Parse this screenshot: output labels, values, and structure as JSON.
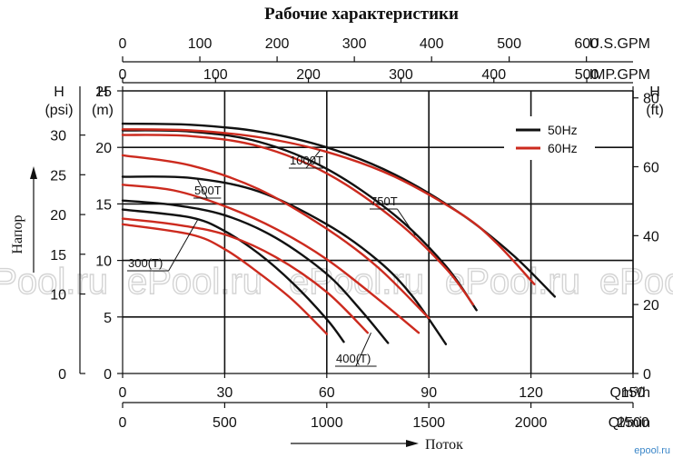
{
  "chart_data": {
    "type": "line",
    "title": "Рабочие характеристики",
    "y_axis_label": "Напор",
    "x_axis_label": "Поток",
    "axes": {
      "left_m": {
        "unit_top": "H",
        "unit": "(m)",
        "min": 0,
        "max": 25,
        "ticks": [
          "0",
          "5",
          "10",
          "15",
          "20",
          "25"
        ]
      },
      "left_psi": {
        "unit_top": "H",
        "unit": "(psi)",
        "ticks": [
          {
            "label": "0",
            "m": 0
          },
          {
            "label": "10",
            "m": 7.03
          },
          {
            "label": "15",
            "m": 10.55
          },
          {
            "label": "20",
            "m": 14.06
          },
          {
            "label": "25",
            "m": 17.58
          },
          {
            "label": "30",
            "m": 21.09
          }
        ]
      },
      "right_ft": {
        "unit_top": "H",
        "unit": "(ft)",
        "ticks": [
          {
            "label": "0",
            "m": 0
          },
          {
            "label": "20",
            "m": 6.1
          },
          {
            "label": "40",
            "m": 12.19
          },
          {
            "label": "60",
            "m": 18.29
          },
          {
            "label": "80",
            "m": 24.38
          }
        ]
      },
      "x_m3h": {
        "unit": "Qm³/h",
        "min": 0,
        "max": 150,
        "ticks": [
          "0",
          "30",
          "60",
          "90",
          "120",
          "150"
        ]
      },
      "x_lmin": {
        "unit": "Ql/min",
        "ticks": [
          {
            "label": "0",
            "m3h": 0
          },
          {
            "label": "500",
            "m3h": 30
          },
          {
            "label": "1000",
            "m3h": 60
          },
          {
            "label": "1500",
            "m3h": 90
          },
          {
            "label": "2000",
            "m3h": 120
          },
          {
            "label": "2500",
            "m3h": 150
          }
        ]
      },
      "x_usgpm": {
        "unit": "U.S.GPM",
        "ticks": [
          {
            "label": "0",
            "m3h": 0
          },
          {
            "label": "100",
            "m3h": 22.7
          },
          {
            "label": "200",
            "m3h": 45.4
          },
          {
            "label": "300",
            "m3h": 68.1
          },
          {
            "label": "400",
            "m3h": 90.8
          },
          {
            "label": "500",
            "m3h": 113.6
          },
          {
            "label": "600",
            "m3h": 136.3
          }
        ]
      },
      "x_impgpm": {
        "unit": "IMP.GPM",
        "ticks": [
          {
            "label": "0",
            "m3h": 0
          },
          {
            "label": "100",
            "m3h": 27.3
          },
          {
            "label": "200",
            "m3h": 54.6
          },
          {
            "label": "300",
            "m3h": 81.8
          },
          {
            "label": "400",
            "m3h": 109.1
          },
          {
            "label": "500",
            "m3h": 136.4
          }
        ]
      }
    },
    "grid": true,
    "legend": {
      "position": "top-right",
      "items": [
        {
          "label": "50Hz",
          "color": "#111111"
        },
        {
          "label": "60Hz",
          "color": "#cc2a1e"
        }
      ]
    },
    "series": [
      {
        "model": "300(T)",
        "freq": "50Hz",
        "color": "#111111",
        "x": [
          0,
          20,
          30,
          40,
          50,
          60,
          65
        ],
        "y": [
          14.5,
          13.8,
          12.6,
          10.6,
          8.0,
          4.8,
          2.8
        ]
      },
      {
        "model": "300(T)",
        "freq": "60Hz",
        "color": "#cc2a1e",
        "x": [
          0,
          20,
          30,
          40,
          50,
          60
        ],
        "y": [
          13.2,
          12.3,
          11.0,
          8.9,
          6.5,
          3.5
        ]
      },
      {
        "model": "400(T)",
        "freq": "50Hz",
        "color": "#111111",
        "x": [
          0,
          15,
          30,
          45,
          60,
          70,
          78
        ],
        "y": [
          15.3,
          14.9,
          14.0,
          12.0,
          8.8,
          5.6,
          2.7
        ]
      },
      {
        "model": "400(T)",
        "freq": "60Hz",
        "color": "#cc2a1e",
        "x": [
          0,
          15,
          30,
          45,
          60,
          72
        ],
        "y": [
          13.7,
          13.2,
          12.3,
          10.3,
          7.2,
          3.6
        ]
      },
      {
        "model": "500T",
        "freq": "50Hz",
        "color": "#111111",
        "x": [
          0,
          20,
          40,
          60,
          75,
          85,
          95
        ],
        "y": [
          17.4,
          17.3,
          16.1,
          13.2,
          10.0,
          6.9,
          2.6
        ]
      },
      {
        "model": "500T",
        "freq": "60Hz",
        "color": "#cc2a1e",
        "x": [
          0,
          15,
          30,
          45,
          60,
          75,
          87
        ],
        "y": [
          16.7,
          16.2,
          14.8,
          12.8,
          10.1,
          6.6,
          3.6
        ]
      },
      {
        "model": "500T",
        "freq": "60Hz",
        "color": "#cc2a1e",
        "x": [
          0,
          20,
          40,
          60,
          75,
          90
        ],
        "y": [
          19.3,
          18.4,
          16.3,
          12.8,
          9.4,
          4.9
        ]
      },
      {
        "model": "750T",
        "freq": "50Hz",
        "color": "#111111",
        "x": [
          0,
          20,
          40,
          60,
          80,
          95,
          104
        ],
        "y": [
          21.5,
          21.4,
          20.5,
          18.1,
          14.0,
          9.5,
          5.6
        ]
      },
      {
        "model": "750T",
        "freq": "60Hz",
        "color": "#cc2a1e",
        "x": [
          0,
          20,
          40,
          60,
          80,
          95,
          103
        ],
        "y": [
          21.1,
          21.0,
          20.1,
          17.7,
          13.6,
          9.3,
          6.1
        ]
      },
      {
        "model": "1000T",
        "freq": "50Hz",
        "color": "#111111",
        "x": [
          0,
          20,
          40,
          60,
          80,
          100,
          115,
          127
        ],
        "y": [
          22.1,
          22.0,
          21.4,
          20.0,
          17.6,
          14.0,
          10.4,
          6.8
        ]
      },
      {
        "model": "1000T",
        "freq": "60Hz",
        "color": "#cc2a1e",
        "x": [
          0,
          20,
          40,
          60,
          80,
          100,
          110,
          121
        ],
        "y": [
          21.6,
          21.5,
          20.9,
          19.6,
          17.4,
          14.0,
          11.5,
          7.9
        ]
      }
    ],
    "model_labels": [
      {
        "text": "1000T",
        "series_index": 10,
        "at_x": 58
      },
      {
        "text": "750T",
        "series_index": 7,
        "at_x": 86
      },
      {
        "text": "500T",
        "series_index": 4,
        "at_x": 22
      },
      {
        "text": "300(T)",
        "series_index": 0,
        "at_x": 22
      },
      {
        "text": "400(T)",
        "series_index": 3,
        "at_x": 73
      }
    ]
  },
  "watermarks": [
    "ePool.ru",
    "ePool.ru",
    "ePool.ru",
    "ePool.ru",
    "ePool.ru"
  ],
  "credit": "epool.ru"
}
